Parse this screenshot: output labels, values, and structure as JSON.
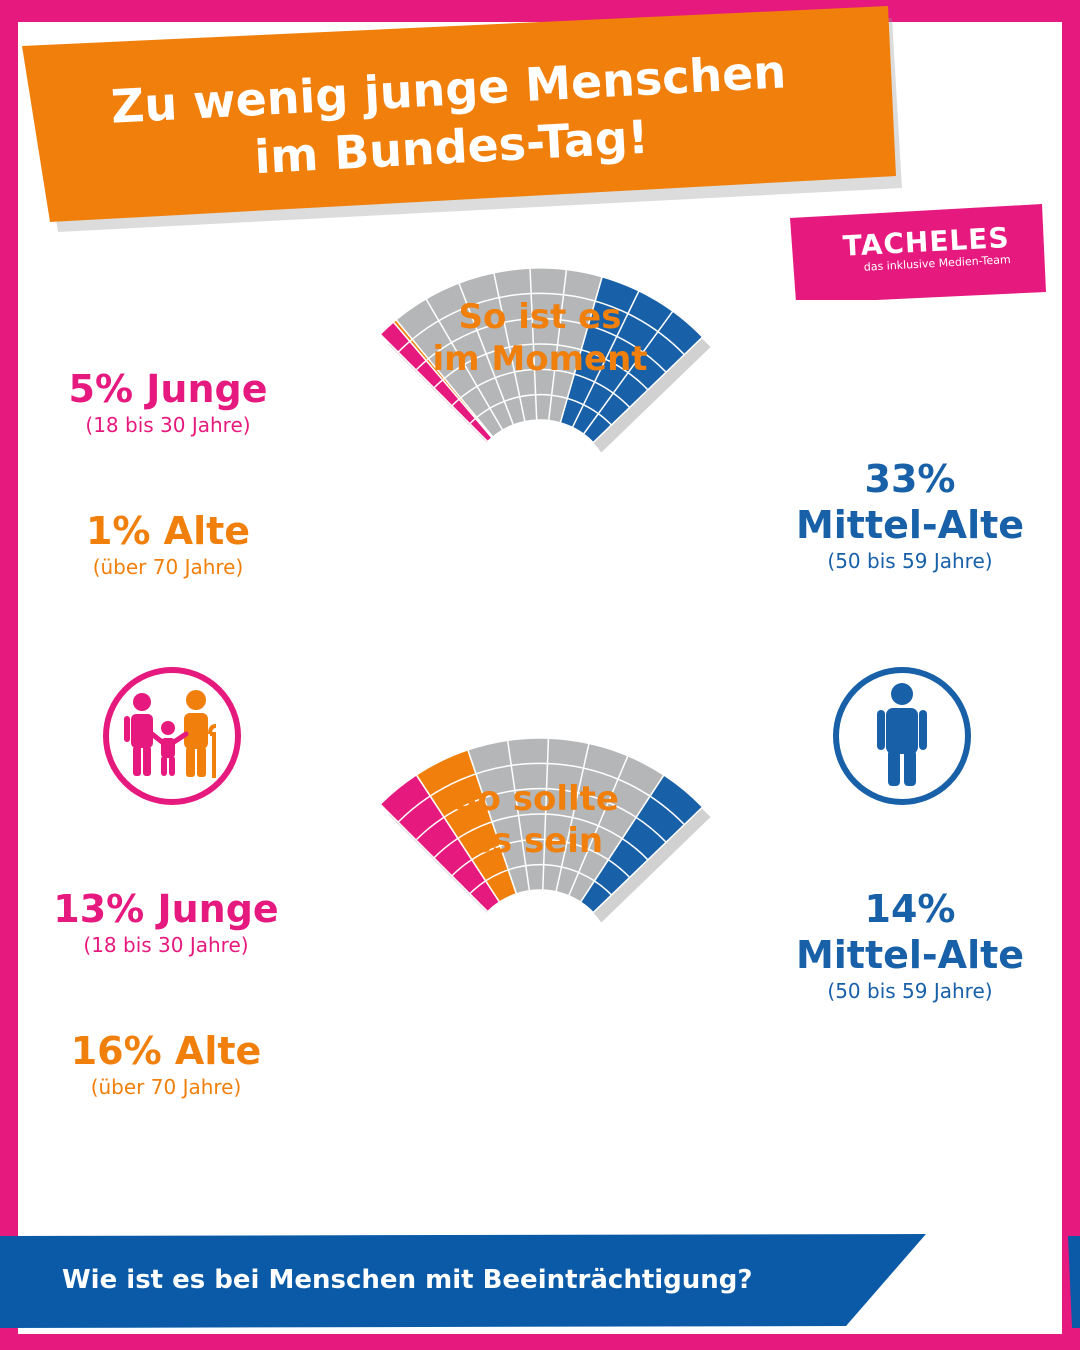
{
  "header": {
    "title_line1": "Zu wenig junge Menschen",
    "title_line2": "im Bundes-Tag!"
  },
  "logo": {
    "name": "TACHELES",
    "tagline": "das inklusive Medien-Team"
  },
  "colors": {
    "pink": "#e6197f",
    "orange": "#f07f0c",
    "blue": "#1860a8",
    "grey": "#b4b6b8",
    "footer_blue": "#0a5aa8"
  },
  "icons": {
    "left": "family-icon",
    "right": "person-icon"
  },
  "chart_data": [
    {
      "type": "pie",
      "title_line1": "So ist es",
      "title_line2": "im Moment",
      "series": [
        {
          "name": "Junge",
          "value": 5,
          "color": "#e6197f"
        },
        {
          "name": "Alte",
          "value": 1,
          "color": "#f07f0c"
        },
        {
          "name": "Mittel-Alte",
          "value": 33,
          "color": "#1860a8"
        }
      ],
      "remainder_color": "#b4b6b8",
      "labels": {
        "young_pct": "5% Junge",
        "young_range": "(18 bis 30 Jahre)",
        "old_pct": "1% Alte",
        "old_range": "(über 70 Jahre)",
        "mid_pct": "33%",
        "mid_name": "Mittel-Alte",
        "mid_range": "(50 bis 59 Jahre)"
      }
    },
    {
      "type": "pie",
      "title_line1": "So sollte",
      "title_line2": "es sein",
      "series": [
        {
          "name": "Junge",
          "value": 13,
          "color": "#e6197f"
        },
        {
          "name": "Alte",
          "value": 16,
          "color": "#f07f0c"
        },
        {
          "name": "Mittel-Alte",
          "value": 14,
          "color": "#1860a8"
        }
      ],
      "remainder_color": "#b4b6b8",
      "labels": {
        "young_pct": "13% Junge",
        "young_range": "(18 bis 30 Jahre)",
        "old_pct": "16% Alte",
        "old_range": "(über 70 Jahre)",
        "mid_pct": "14%",
        "mid_name": "Mittel-Alte",
        "mid_range": "(50 bis 59 Jahre)"
      }
    }
  ],
  "footer": {
    "question": "Wie ist es bei Menschen mit Beeinträchtigung?"
  }
}
